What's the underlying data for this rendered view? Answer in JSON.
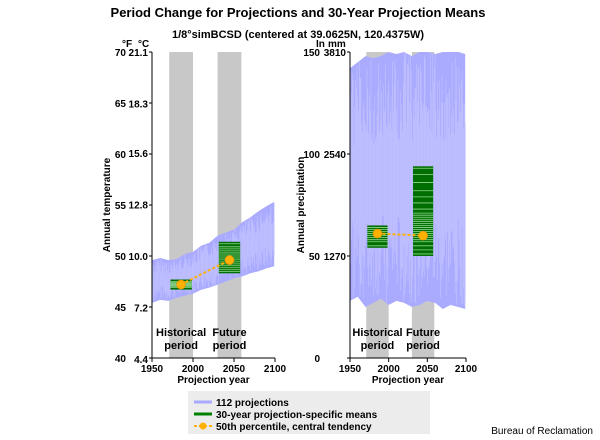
{
  "page": {
    "title": "Period Change for Projections and 30-Year Projection Means",
    "subtitle": "1/8°simBCSD (centered at 39.0625N, 120.4375W)",
    "credit": "Bureau of Reclamation"
  },
  "legend": {
    "items": [
      {
        "label": "112 projections",
        "color": "#aaaaff",
        "kind": "band"
      },
      {
        "label": "30-year projection-specific means",
        "color": "#008000",
        "kind": "line"
      },
      {
        "label": "50th percentile, central tendency",
        "color": "#ffb000",
        "kind": "line-dot"
      }
    ],
    "placement": "bottom-center"
  },
  "chart_data": [
    {
      "type": "area",
      "title": "",
      "xlabel": "Projection year",
      "ylabel": "Annual temperature",
      "ylabel_right": "",
      "unit_left": "°F",
      "unit_right": "°C",
      "xlim": [
        1950,
        2100
      ],
      "ylim": [
        40,
        70
      ],
      "xticks": [
        "1950",
        "2000",
        "2050",
        "2100"
      ],
      "yticks_left": [
        {
          "v": 40,
          "l": "40"
        },
        {
          "v": 45,
          "l": "45"
        },
        {
          "v": 50,
          "l": "50"
        },
        {
          "v": 55,
          "l": "55"
        },
        {
          "v": 60,
          "l": "60"
        },
        {
          "v": 65,
          "l": "65"
        },
        {
          "v": 70,
          "l": "70"
        }
      ],
      "yticks_right": [
        {
          "v": 39.92,
          "l": "4.4"
        },
        {
          "v": 44.96,
          "l": "7.2"
        },
        {
          "v": 50.0,
          "l": "10.0"
        },
        {
          "v": 55.04,
          "l": "12.8"
        },
        {
          "v": 60.08,
          "l": "15.6"
        },
        {
          "v": 64.94,
          "l": "18.3"
        },
        {
          "v": 69.98,
          "l": "21.1"
        }
      ],
      "periods": [
        {
          "name": "Historical period",
          "label_lines": [
            "Historical",
            "period"
          ],
          "xrange": [
            1971,
            2000
          ]
        },
        {
          "name": "Future period",
          "label_lines": [
            "Future",
            "period"
          ],
          "xrange": [
            2030,
            2059
          ]
        }
      ],
      "projection_envelope": {
        "x": [
          1950,
          1960,
          1970,
          1980,
          1990,
          2000,
          2010,
          2020,
          2030,
          2040,
          2050,
          2060,
          2070,
          2080,
          2090,
          2099
        ],
        "lower": [
          45.4,
          45.7,
          45.6,
          45.9,
          46.1,
          46.3,
          46.7,
          46.9,
          47.2,
          47.5,
          47.8,
          48.0,
          48.3,
          48.5,
          48.8,
          49.0
        ],
        "upper": [
          49.6,
          49.8,
          49.6,
          49.7,
          50.2,
          50.4,
          51.0,
          51.3,
          52.0,
          52.3,
          52.6,
          53.3,
          53.8,
          54.4,
          54.9,
          55.3
        ]
      },
      "projection_count": 112,
      "period_means": {
        "historical": [
          46.9,
          47.0,
          47.1,
          47.2,
          47.3,
          47.4,
          47.5
        ],
        "future": [
          48.5,
          48.7,
          48.9,
          49.1,
          49.3,
          49.5,
          49.7,
          49.9,
          50.1,
          50.3,
          50.5,
          50.7,
          50.9,
          51.2
        ]
      },
      "central_tendency": {
        "x": [
          1985.5,
          2044.5
        ],
        "y": [
          47.2,
          49.6
        ]
      }
    },
    {
      "type": "area",
      "title": "",
      "xlabel": "Projection year",
      "ylabel": "Annual precipitation",
      "unit_left": "In",
      "unit_right": "mm",
      "xlim": [
        1950,
        2100
      ],
      "ylim": [
        0,
        150
      ],
      "xticks": [
        "1950",
        "2000",
        "2050",
        "2100"
      ],
      "yticks_left": [
        {
          "v": 0,
          "l": "0"
        },
        {
          "v": 50,
          "l": "50"
        },
        {
          "v": 100,
          "l": "100"
        },
        {
          "v": 150,
          "l": "150"
        }
      ],
      "yticks_right": [
        {
          "v": 50.0,
          "l": "1270"
        },
        {
          "v": 100.0,
          "l": "2540"
        },
        {
          "v": 150.0,
          "l": "3810"
        }
      ],
      "periods": [
        {
          "name": "Historical period",
          "label_lines": [
            "Historical",
            "period"
          ],
          "xrange": [
            1971,
            2000
          ]
        },
        {
          "name": "Future period",
          "label_lines": [
            "Future",
            "period"
          ],
          "xrange": [
            2030,
            2059
          ]
        }
      ],
      "projection_envelope": {
        "x": [
          1950,
          1960,
          1970,
          1980,
          1990,
          2000,
          2010,
          2020,
          2030,
          2040,
          2050,
          2060,
          2070,
          2080,
          2090,
          2099
        ],
        "lower": [
          28,
          30,
          25,
          27,
          29,
          26,
          28,
          27,
          25,
          26,
          28,
          27,
          24,
          26,
          25,
          24
        ],
        "upper": [
          142,
          145,
          148,
          147,
          148,
          150,
          149,
          150,
          148,
          150,
          150,
          149,
          150,
          150,
          150,
          149
        ]
      },
      "projection_count": 112,
      "period_means": {
        "historical": [
          55,
          57,
          58,
          59,
          60,
          61,
          62,
          63,
          64
        ],
        "future": [
          51,
          53,
          55,
          57,
          58,
          59,
          60,
          61,
          62,
          63,
          64,
          65,
          66,
          67,
          68,
          69,
          70,
          71,
          73,
          76,
          79,
          82,
          86,
          90,
          93
        ]
      },
      "central_tendency": {
        "x": [
          1985.5,
          2044.5
        ],
        "y": [
          61,
          60
        ]
      }
    }
  ]
}
